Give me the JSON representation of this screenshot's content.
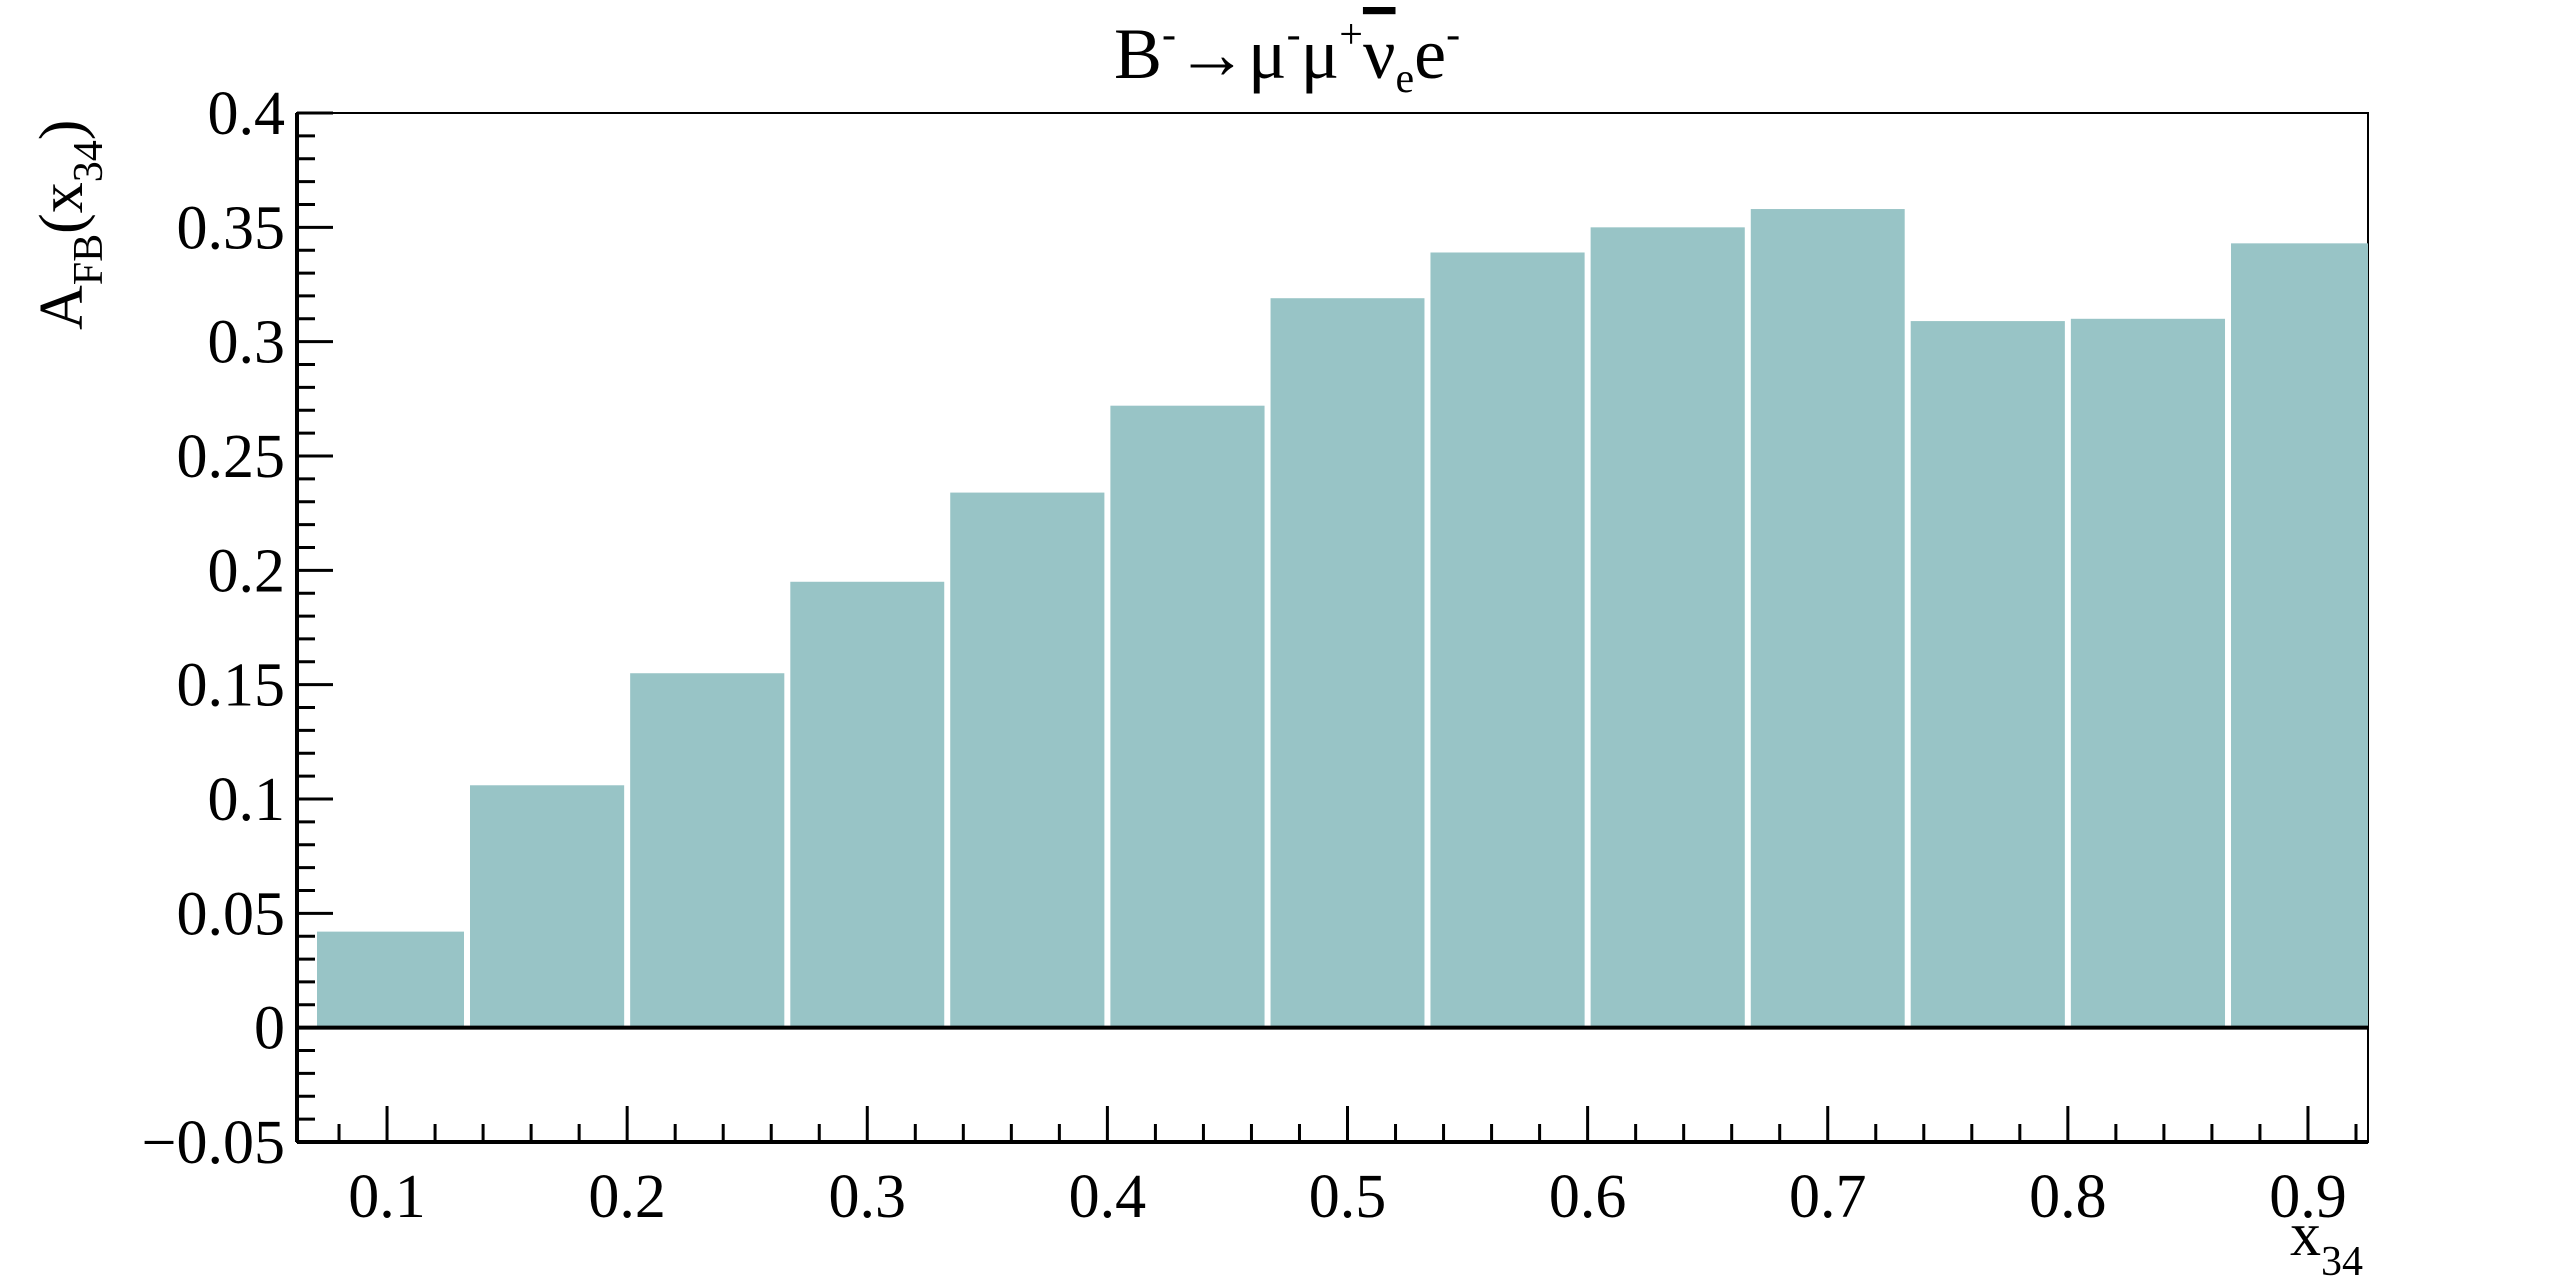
{
  "chart_data": {
    "type": "bar",
    "title": {
      "main": "B",
      "main_sup": "-",
      "arrow": "→μ",
      "arrow_sup": "-",
      "mu2": "μ",
      "mu2_sup": "+",
      "nu": "ν",
      "nu_sub": "e",
      "e": "e",
      "e_sup": "-"
    },
    "xlabel": {
      "base": "x",
      "sub": "34"
    },
    "ylabel": {
      "base": "A",
      "sub1": "FB",
      "open": "(x",
      "sub2": "34",
      "close": ")"
    },
    "xlim": [
      0.0625,
      0.925
    ],
    "ylim": [
      -0.05,
      0.4
    ],
    "x_ticks": [
      "0.1",
      "0.2",
      "0.3",
      "0.4",
      "0.5",
      "0.6",
      "0.7",
      "0.8",
      "0.9"
    ],
    "y_ticks": [
      "−0.05",
      "0",
      "0.05",
      "0.1",
      "0.15",
      "0.2",
      "0.25",
      "0.3",
      "0.35",
      "0.4"
    ],
    "bin_edges": [
      0.0625,
      0.1333,
      0.2,
      0.2667,
      0.3333,
      0.4,
      0.4667,
      0.5333,
      0.6,
      0.6667,
      0.7333,
      0.8,
      0.8667,
      0.925
    ],
    "values": [
      0.042,
      0.106,
      0.155,
      0.195,
      0.234,
      0.272,
      0.319,
      0.339,
      0.35,
      0.358,
      0.309,
      0.31,
      0.343
    ],
    "bar_color": "#98c4c6",
    "axis_color": "#000000",
    "grid": false
  }
}
